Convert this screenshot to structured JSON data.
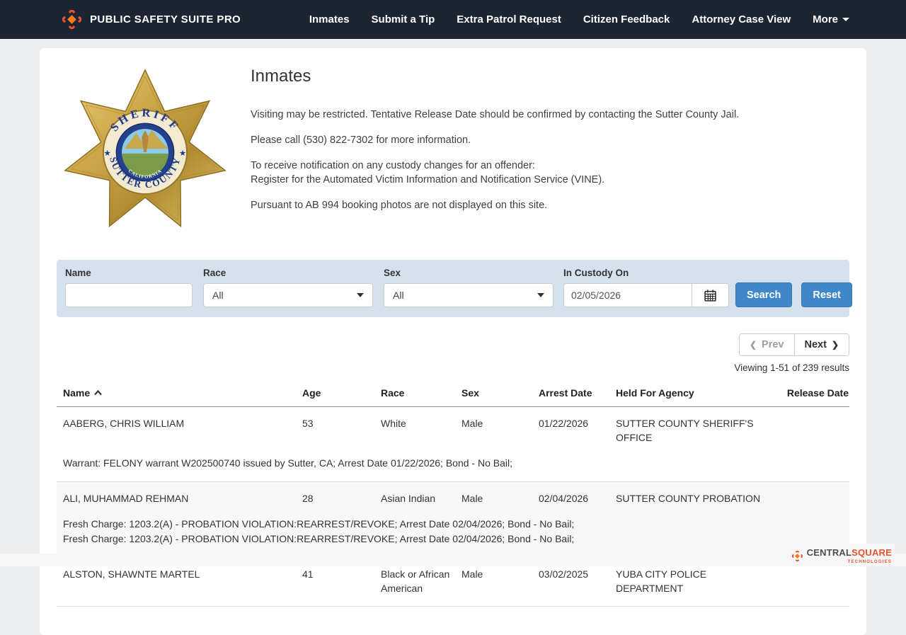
{
  "navbar": {
    "brand": "PUBLIC SAFETY SUITE PRO",
    "items": [
      "Inmates",
      "Submit a Tip",
      "Extra Patrol Request",
      "Citizen Feedback",
      "Attorney Case View",
      "More"
    ]
  },
  "header": {
    "title": "Inmates",
    "notices": [
      "Visiting may be restricted. Tentative Release Date should be confirmed by contacting the Sutter County Jail.",
      "Please call (530) 822-7302 for more information.",
      "To receive notification on any custody changes for an offender:",
      "Register for the Automated Victim Information and Notification Service (VINE).",
      "Pursuant to AB 994 booking photos are not displayed on this site."
    ]
  },
  "badge": {
    "arc_top": "SHERIFF",
    "arc_bottom": "SUTTER COUNTY",
    "seal_top": "STATE OF",
    "seal_bottom": "CALIFORNIA"
  },
  "filters": {
    "name_label": "Name",
    "name_value": "",
    "race_label": "Race",
    "race_value": "All",
    "sex_label": "Sex",
    "sex_value": "All",
    "custody_label": "In Custody On",
    "custody_value": "02/05/2026",
    "search_label": "Search",
    "reset_label": "Reset"
  },
  "pagination": {
    "prev_label": "Prev",
    "next_label": "Next",
    "prev_chevron": "❮",
    "next_chevron": "❯",
    "summary": "Viewing 1-51 of 239 results"
  },
  "table": {
    "columns": [
      "Name",
      "Age",
      "Race",
      "Sex",
      "Arrest Date",
      "Held For Agency",
      "Release Date"
    ],
    "sort": {
      "column": "Name",
      "direction": "asc"
    },
    "rows": [
      {
        "name": "AABERG, CHRIS WILLIAM",
        "age": "53",
        "race": "White",
        "sex": "Male",
        "arrest_date": "01/22/2026",
        "agency": "SUTTER COUNTY SHERIFF'S OFFICE",
        "release_date": "",
        "charges": [
          "Warrant: FELONY warrant W202500740 issued by Sutter, CA; Arrest Date 01/22/2026; Bond - No Bail;"
        ]
      },
      {
        "name": "ALI, MUHAMMAD REHMAN",
        "age": "28",
        "race": "Asian Indian",
        "sex": "Male",
        "arrest_date": "02/04/2026",
        "agency": "SUTTER COUNTY PROBATION",
        "release_date": "",
        "charges": [
          "Fresh Charge: 1203.2(A) - PROBATION VIOLATION:REARREST/REVOKE; Arrest Date 02/04/2026; Bond - No Bail;",
          "Fresh Charge: 1203.2(A) - PROBATION VIOLATION:REARREST/REVOKE; Arrest Date 02/04/2026; Bond - No Bail;"
        ]
      },
      {
        "name": "ALSTON, SHAWNTE MARTEL",
        "age": "41",
        "race": "Black or African American",
        "sex": "Male",
        "arrest_date": "03/02/2025",
        "agency": "YUBA CITY POLICE DEPARTMENT",
        "release_date": "",
        "charges": []
      }
    ]
  },
  "footer": {
    "brand_left": "CENTRAL",
    "brand_right": "SQUARE",
    "tagline": "TECHNOLOGIES"
  },
  "colors": {
    "navbar_bg": "#1d2532",
    "accent_blue": "#3e87c8",
    "filter_bg": "#d5e1ed",
    "brand_orange": "#e8542e",
    "stripe_gray": "#f7f7f8"
  }
}
